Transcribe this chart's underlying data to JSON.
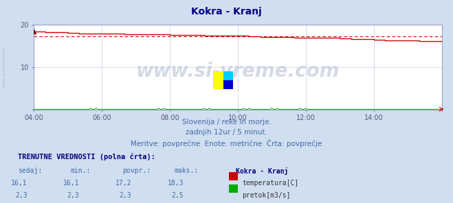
{
  "title": "Kokra - Kranj",
  "title_color": "#000080",
  "bg_color": "#d0dff0",
  "plot_bg_color": "#ffffff",
  "fig_width": 6.59,
  "fig_height": 2.96,
  "dpi": 100,
  "xlim": [
    0,
    144
  ],
  "ylim": [
    0,
    20
  ],
  "xtick_positions": [
    0,
    24,
    48,
    72,
    96,
    120,
    144
  ],
  "xtick_labels": [
    "04:00",
    "06:00",
    "08:00",
    "10:00",
    "12:00",
    "14:00",
    ""
  ],
  "ytick_positions": [
    0,
    10,
    20
  ],
  "ytick_labels": [
    "",
    "10",
    "20"
  ],
  "grid_color": "#c8c8e8",
  "temp_color": "#cc0000",
  "flow_color": "#00aa00",
  "avg_line_color": "#cc0000",
  "avg_value": 17.2,
  "temp_data_x": [
    0,
    4,
    8,
    12,
    16,
    20,
    24,
    28,
    32,
    36,
    40,
    44,
    48,
    52,
    56,
    60,
    64,
    68,
    72,
    76,
    80,
    84,
    88,
    92,
    96,
    100,
    104,
    108,
    112,
    116,
    120,
    124,
    128,
    132,
    136,
    140,
    144
  ],
  "temp_data_y": [
    18.3,
    18.2,
    18.1,
    18.0,
    17.9,
    17.9,
    17.8,
    17.8,
    17.7,
    17.7,
    17.6,
    17.6,
    17.5,
    17.5,
    17.5,
    17.4,
    17.4,
    17.3,
    17.3,
    17.2,
    17.1,
    17.0,
    17.0,
    16.9,
    16.9,
    16.8,
    16.8,
    16.7,
    16.6,
    16.5,
    16.4,
    16.3,
    16.2,
    16.2,
    16.1,
    16.1,
    16.1
  ],
  "watermark_text": "www.si-vreme.com",
  "watermark_color": "#1a3a6e",
  "watermark_alpha": 0.18,
  "watermark_fontsize": 20,
  "left_label": "www.si-vreme.com",
  "subtitle1": "Slovenija / reke in morje.",
  "subtitle2": "zadnjih 12ur / 5 minut.",
  "subtitle3": "Meritve: povprečne  Enote: metrične  Črta: povprečje",
  "subtitle_color": "#4466aa",
  "subtitle_fontsize": 7.5,
  "table_title": "TRENUTNE VREDNOSTI (polna črta):",
  "table_title_color": "#000080",
  "col_headers": [
    "sedaj:",
    "min.:",
    "povpr.:",
    "maks.:"
  ],
  "col_values_temp": [
    "16,1",
    "16,1",
    "17,2",
    "18,3"
  ],
  "col_values_flow": [
    "2,3",
    "2,3",
    "2,3",
    "2,5"
  ],
  "station_name": "Kokra - Kranj",
  "legend_temp": "temperatura[C]",
  "legend_flow": "pretok[m3/s]",
  "table_fontsize": 7.0,
  "marker_color": "#880000",
  "tick_color": "#555577",
  "spine_color": "#8888bb"
}
